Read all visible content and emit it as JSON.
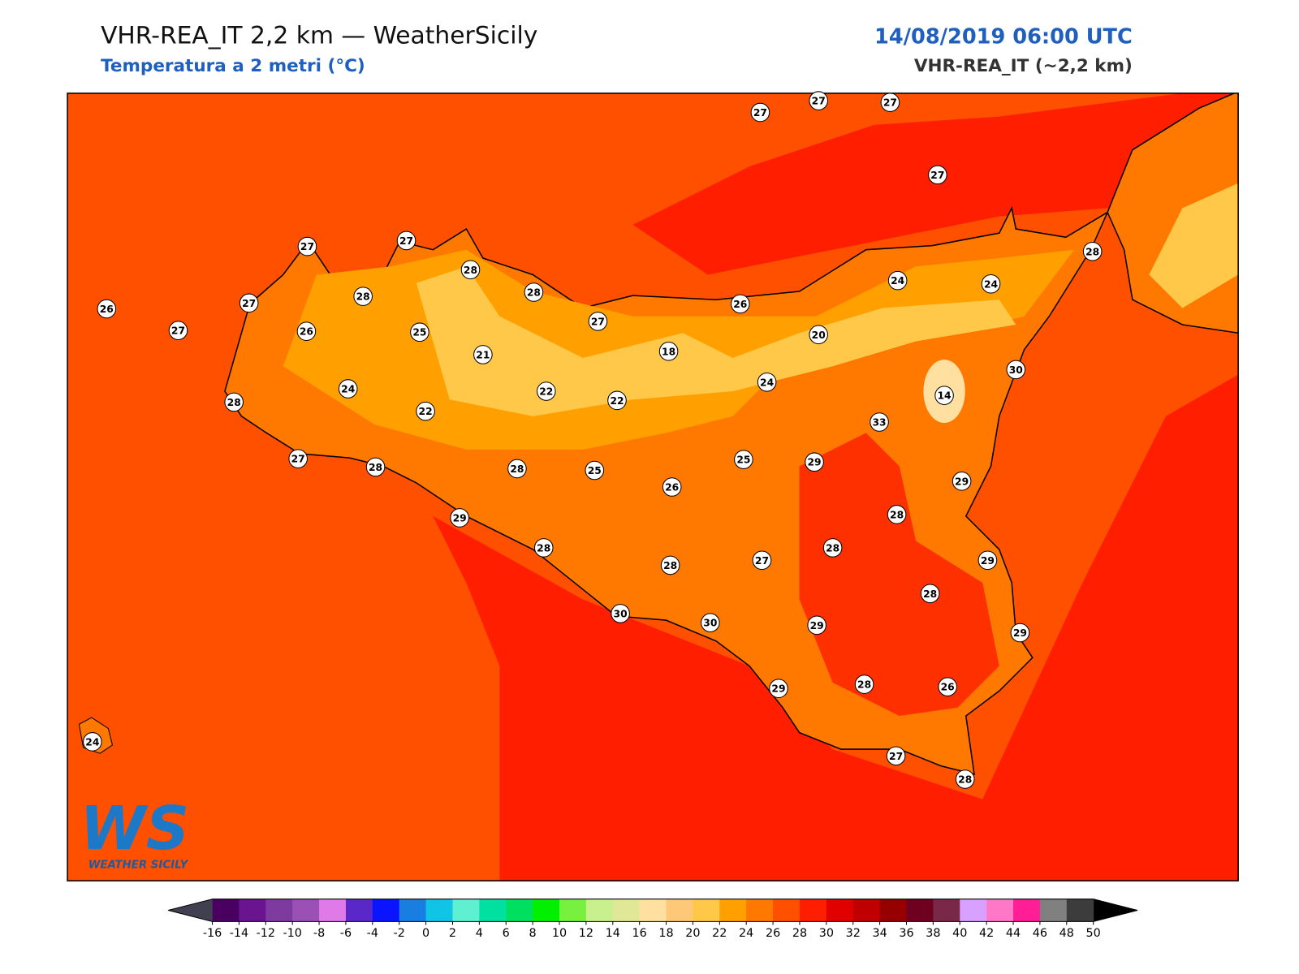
{
  "header": {
    "title": "VHR-REA_IT 2,2 km — WeatherSicily",
    "subtitle": "Temperatura a 2 metri (°C)",
    "date": "14/08/2019 06:00 UTC",
    "model": "VHR-REA_IT (~2,2 km)"
  },
  "logo": {
    "mark": "WS",
    "name": "WEATHER SICILY"
  },
  "stations": [
    27,
    27,
    27,
    27,
    27,
    27,
    28,
    28,
    28,
    27,
    26,
    27,
    26,
    25,
    21,
    27,
    18,
    26,
    20,
    24,
    24,
    28,
    30,
    14,
    24,
    33,
    24,
    28,
    22,
    22,
    22,
    27,
    28,
    28,
    25,
    26,
    25,
    29,
    29,
    29,
    28,
    28,
    28,
    27,
    28,
    29,
    28,
    30,
    30,
    29,
    29,
    29,
    28,
    26,
    27,
    28,
    24
  ],
  "colorbar": {
    "ticks": [
      -16,
      -14,
      -12,
      -10,
      -8,
      -6,
      -4,
      -2,
      0,
      2,
      4,
      6,
      8,
      10,
      12,
      14,
      16,
      18,
      20,
      22,
      24,
      26,
      28,
      30,
      32,
      34,
      36,
      38,
      40,
      42,
      44,
      46,
      48,
      50
    ],
    "colors": [
      "#4a0060",
      "#6a1490",
      "#7f3aa0",
      "#9a50b4",
      "#e07ae8",
      "#5a28c8",
      "#0a14ff",
      "#1a7ee0",
      "#10c4e6",
      "#5ef0d0",
      "#00e0a0",
      "#00e060",
      "#00f000",
      "#78f040",
      "#c8f08c",
      "#e0e898",
      "#ffe0a0",
      "#ffc878",
      "#ffc848",
      "#ffa000",
      "#ff7800",
      "#ff5000",
      "#ff1e00",
      "#e00000",
      "#c00000",
      "#960000",
      "#6e0020",
      "#7a2848",
      "#d8a0ff",
      "#ff78c8",
      "#ff1e96",
      "#808080",
      "#3c3c3c"
    ],
    "under_color": "#404050",
    "over_color": "#000000"
  }
}
